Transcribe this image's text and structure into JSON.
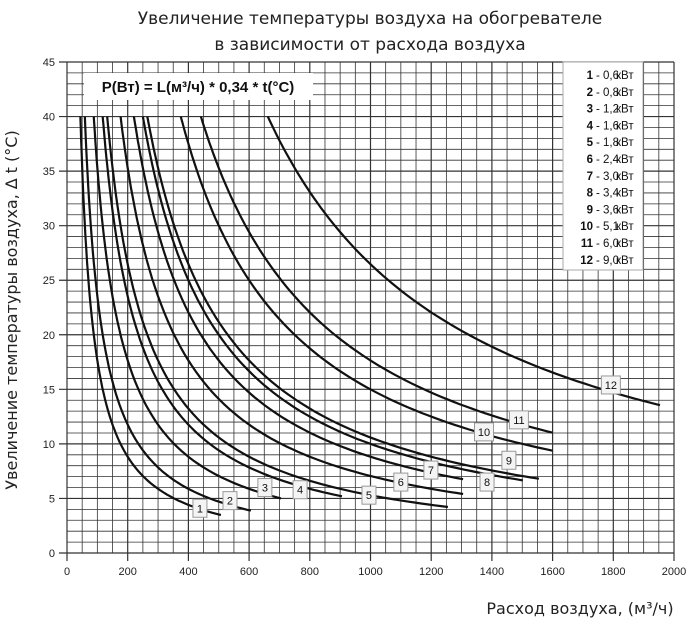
{
  "chart_data": {
    "type": "line",
    "title": [
      "Увеличение температуры воздуха на обогревателе",
      "в зависимости от расхода воздуха"
    ],
    "xlabel": "Расход воздуха, (м³/ч)",
    "ylabel": "Увеличение температуры воздуха, ∆ t (°C)",
    "xlim": [
      0,
      2000
    ],
    "ylim": [
      0,
      45
    ],
    "xticks": [
      "0",
      "200",
      "400",
      "600",
      "800",
      "1000",
      "1200",
      "1400",
      "1600",
      "1800",
      "2000"
    ],
    "yticks": [
      "0",
      "5",
      "10",
      "15",
      "20",
      "25",
      "30",
      "35",
      "40",
      "45"
    ],
    "grid": true,
    "formula": "P(Вт) = L(м³/ч) * 0,34 * t(°C)",
    "legend_position": "top-right",
    "series": [
      {
        "id": "1",
        "name": "0,6",
        "unit": "кВт",
        "power_w": 600,
        "x_end": 507,
        "label_at": [
          438,
          4.1
        ]
      },
      {
        "id": "2",
        "name": "0,8",
        "unit": "кВт",
        "power_w": 800,
        "x_end": 606,
        "label_at": [
          537,
          4.8
        ]
      },
      {
        "id": "3",
        "name": "1,2",
        "unit": "кВт",
        "power_w": 1200,
        "x_end": 705,
        "label_at": [
          652,
          6.0
        ]
      },
      {
        "id": "4",
        "name": "1,6",
        "unit": "кВт",
        "power_w": 1600,
        "x_end": 906,
        "label_at": [
          768,
          5.8
        ]
      },
      {
        "id": "5",
        "name": "1,8",
        "unit": "кВт",
        "power_w": 1800,
        "x_end": 1255,
        "label_at": [
          995,
          5.3
        ]
      },
      {
        "id": "6",
        "name": "2,4",
        "unit": "кВт",
        "power_w": 2400,
        "x_end": 1305,
        "label_at": [
          1100,
          6.5
        ]
      },
      {
        "id": "7",
        "name": "3,0",
        "unit": "кВт",
        "power_w": 3000,
        "x_end": 1305,
        "label_at": [
          1199,
          7.6
        ]
      },
      {
        "id": "8",
        "name": "3,4",
        "unit": "кВт",
        "power_w": 3400,
        "x_end": 1502,
        "label_at": [
          1384,
          6.5
        ]
      },
      {
        "id": "9",
        "name": "3,6",
        "unit": "кВт",
        "power_w": 3600,
        "x_end": 1555,
        "label_at": [
          1456,
          8.5
        ]
      },
      {
        "id": "10",
        "name": "5,1",
        "unit": "кВт",
        "power_w": 5100,
        "x_end": 1600,
        "label_at": [
          1374,
          11.1
        ]
      },
      {
        "id": "11",
        "name": "6,0",
        "unit": "кВт",
        "power_w": 6000,
        "x_end": 1600,
        "label_at": [
          1489,
          12.2
        ]
      },
      {
        "id": "12",
        "name": "9,0",
        "unit": "кВт",
        "power_w": 9000,
        "x_end": 1954,
        "label_at": [
          1792,
          15.4
        ]
      }
    ]
  }
}
